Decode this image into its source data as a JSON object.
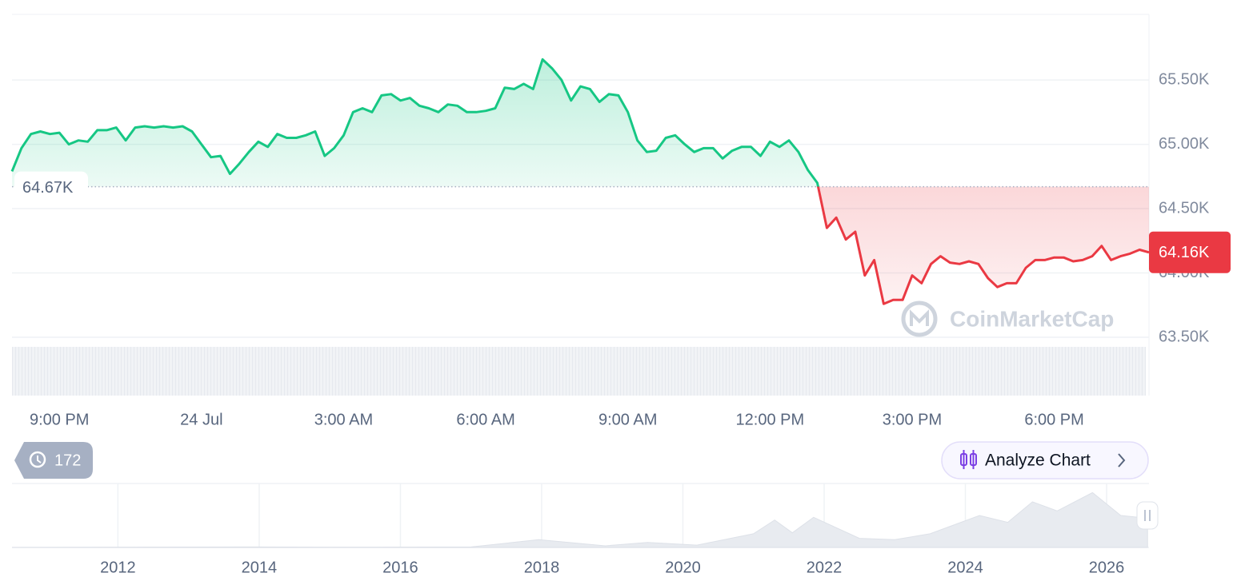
{
  "chart_data": [
    {
      "type": "line",
      "values": [
        64790,
        64970,
        65080,
        65100,
        65080,
        65090,
        65000,
        65030,
        65020,
        65110,
        65110,
        65130,
        65030,
        65130,
        65140,
        65130,
        65140,
        65130,
        65140,
        65100,
        65000,
        64900,
        64910,
        64770,
        64850,
        64940,
        65020,
        64980,
        65080,
        65050,
        65050,
        65070,
        65100,
        64910,
        64970,
        65070,
        65250,
        65280,
        65250,
        65380,
        65390,
        65340,
        65360,
        65300,
        65280,
        65250,
        65310,
        65300,
        65250,
        65250,
        65260,
        65280,
        65440,
        65430,
        65470,
        65430,
        65660,
        65590,
        65500,
        65340,
        65450,
        65430,
        65330,
        65390,
        65380,
        65250,
        65030,
        64940,
        64950,
        65050,
        65070,
        65000,
        64940,
        64970,
        64970,
        64890,
        64950,
        64980,
        64980,
        64910,
        65020,
        64980,
        65030,
        64940,
        64800,
        64700,
        64350,
        64430,
        64260,
        64320,
        63980,
        64100,
        63760,
        63790,
        63790,
        63980,
        63920,
        64070,
        64130,
        64080,
        64070,
        64090,
        64070,
        63960,
        63890,
        63920,
        63920,
        64040,
        64100,
        64100,
        64120,
        64120,
        64090,
        64100,
        64130,
        64210,
        64100,
        64130,
        64150,
        64180,
        64160
      ],
      "xlim": [
        0,
        120
      ],
      "xticks": [
        {
          "value": 5,
          "label": "9:00 PM"
        },
        {
          "value": 20,
          "label": "24 Jul"
        },
        {
          "value": 35,
          "label": "3:00 AM"
        },
        {
          "value": 50,
          "label": "6:00 AM"
        },
        {
          "value": 65,
          "label": "9:00 AM"
        },
        {
          "value": 80,
          "label": "12:00 PM"
        },
        {
          "value": 95,
          "label": "3:00 PM"
        },
        {
          "value": 110,
          "label": "6:00 PM"
        }
      ],
      "ylim": [
        63500,
        66010
      ],
      "yticks": [
        {
          "value": 63500,
          "label": "63.50K"
        },
        {
          "value": 64000,
          "label": "64.00K"
        },
        {
          "value": 64500,
          "label": "64.50K"
        },
        {
          "value": 65000,
          "label": "65.00K"
        },
        {
          "value": 65500,
          "label": "65.50K"
        }
      ],
      "baseline": {
        "value": 64670,
        "label": "64.67K"
      },
      "current_label": "64.16K",
      "up_color": "#16c784",
      "down_color": "#ea3943",
      "grid": true
    },
    {
      "type": "area",
      "x": [
        2010.5,
        2013.9,
        2015.0,
        2017.0,
        2017.96,
        2018.9,
        2019.5,
        2020.2,
        2021.0,
        2021.3,
        2021.55,
        2021.85,
        2022.5,
        2023.0,
        2023.5,
        2024.2,
        2024.6,
        2024.95,
        2025.3,
        2025.8,
        2026.2,
        2026.58
      ],
      "values": [
        0,
        1000,
        300,
        1000,
        17000,
        3500,
        11000,
        5000,
        30000,
        60000,
        32000,
        66000,
        20000,
        17000,
        30000,
        70000,
        55000,
        100000,
        80000,
        120000,
        70000,
        64000
      ],
      "xlim": [
        2010.5,
        2026.6
      ],
      "ylim": [
        0,
        140000
      ],
      "xticks": [
        2012,
        2014,
        2016,
        2018,
        2020,
        2022,
        2024,
        2026
      ],
      "color": "#e8ebf0",
      "grid": true
    }
  ],
  "watermark": "CoinMarketCap",
  "history_count": 172,
  "analyze_button": "Analyze Chart"
}
